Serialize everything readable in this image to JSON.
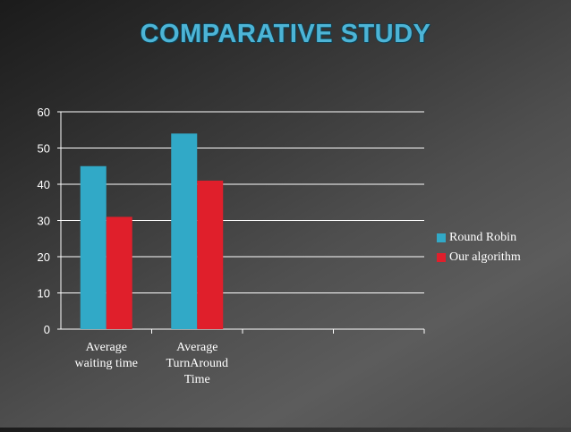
{
  "slide": {
    "title": "COMPARATIVE STUDY"
  },
  "colors": {
    "series1": "#31a9c7",
    "series2": "#e01f2b",
    "grid": "#ffffff",
    "text": "#ffffff"
  },
  "chart_data": {
    "type": "bar",
    "title": "",
    "xlabel": "",
    "ylabel": "",
    "categories": [
      [
        "Average",
        "waiting time"
      ],
      [
        "Average",
        "TurnAround",
        "Time"
      ],
      [
        ""
      ],
      [
        ""
      ]
    ],
    "series": [
      {
        "name": "Round Robin",
        "values": [
          45,
          54,
          null,
          null
        ]
      },
      {
        "name": "Our algorithm",
        "values": [
          31,
          41,
          null,
          null
        ]
      }
    ],
    "ylim": [
      0,
      60
    ],
    "yticks": [
      "0",
      "10",
      "20",
      "30",
      "40",
      "50",
      "60"
    ],
    "grid": true,
    "legend_position": "right"
  }
}
